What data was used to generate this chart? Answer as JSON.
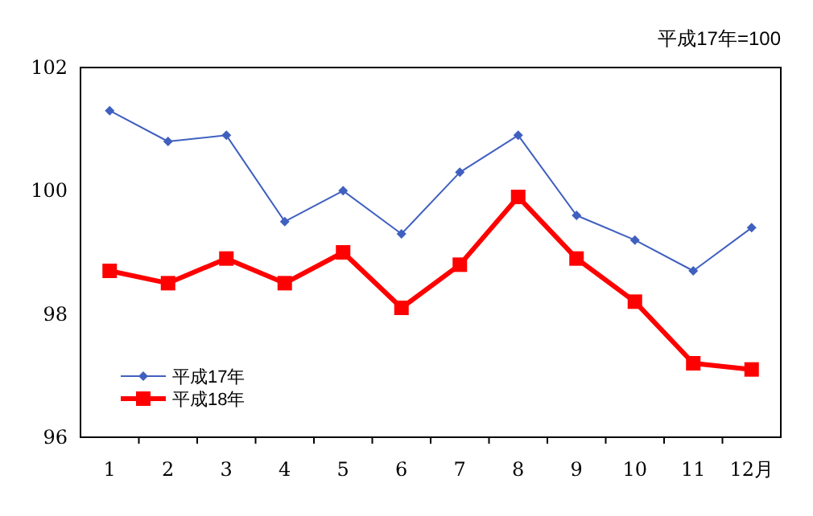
{
  "chart_data": {
    "type": "line",
    "annotations": [
      "平成17年=100"
    ],
    "categories": [
      "1",
      "2",
      "3",
      "4",
      "5",
      "6",
      "7",
      "8",
      "9",
      "10",
      "11",
      "12月"
    ],
    "series": [
      {
        "name": "平成17年",
        "color": "#4060c0",
        "marker": "diamond",
        "values": [
          101.3,
          100.8,
          100.9,
          99.5,
          100.0,
          99.3,
          100.3,
          100.9,
          99.6,
          99.2,
          98.7,
          99.4
        ]
      },
      {
        "name": "平成18年",
        "color": "#ff0000",
        "marker": "square",
        "values": [
          98.7,
          98.5,
          98.9,
          98.5,
          99.0,
          98.1,
          98.8,
          99.9,
          98.9,
          98.2,
          97.2,
          97.1
        ]
      }
    ],
    "ylim": [
      96,
      102
    ],
    "yticks": [
      96,
      98,
      100,
      102
    ],
    "grid": false,
    "legend": "bottom left",
    "line_style": "solid"
  }
}
